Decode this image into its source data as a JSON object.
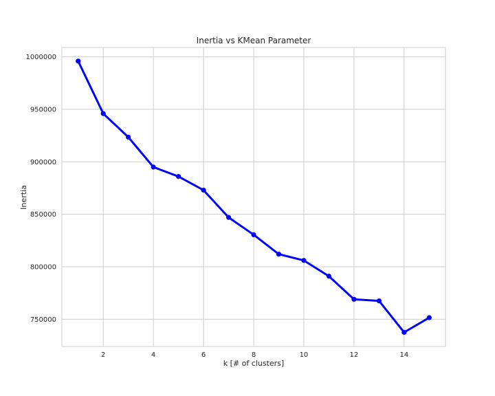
{
  "chart_data": {
    "type": "line",
    "title": "Inertia vs KMean Parameter",
    "xlabel": "k [# of clusters]",
    "ylabel": "Inertia",
    "x": [
      1,
      2,
      3,
      4,
      5,
      6,
      7,
      8,
      9,
      10,
      11,
      12,
      13,
      14,
      15
    ],
    "series": [
      {
        "values": [
          996000,
          946000,
          923500,
          895000,
          886000,
          873000,
          847000,
          830500,
          812000,
          806000,
          791000,
          769000,
          767500,
          737500,
          751500
        ],
        "color": "#0000ff"
      }
    ],
    "xlim": [
      0.35,
      15.65
    ],
    "ylim": [
      724000,
      1009000
    ],
    "xticks": [
      2,
      4,
      6,
      8,
      10,
      12,
      14
    ],
    "yticks": [
      750000,
      800000,
      850000,
      900000,
      950000,
      1000000
    ],
    "grid": true,
    "legend": "none",
    "colors": {
      "grid": "#cccccc",
      "frame": "#cccccc",
      "text": "#262626",
      "line": "#0000ff"
    }
  }
}
